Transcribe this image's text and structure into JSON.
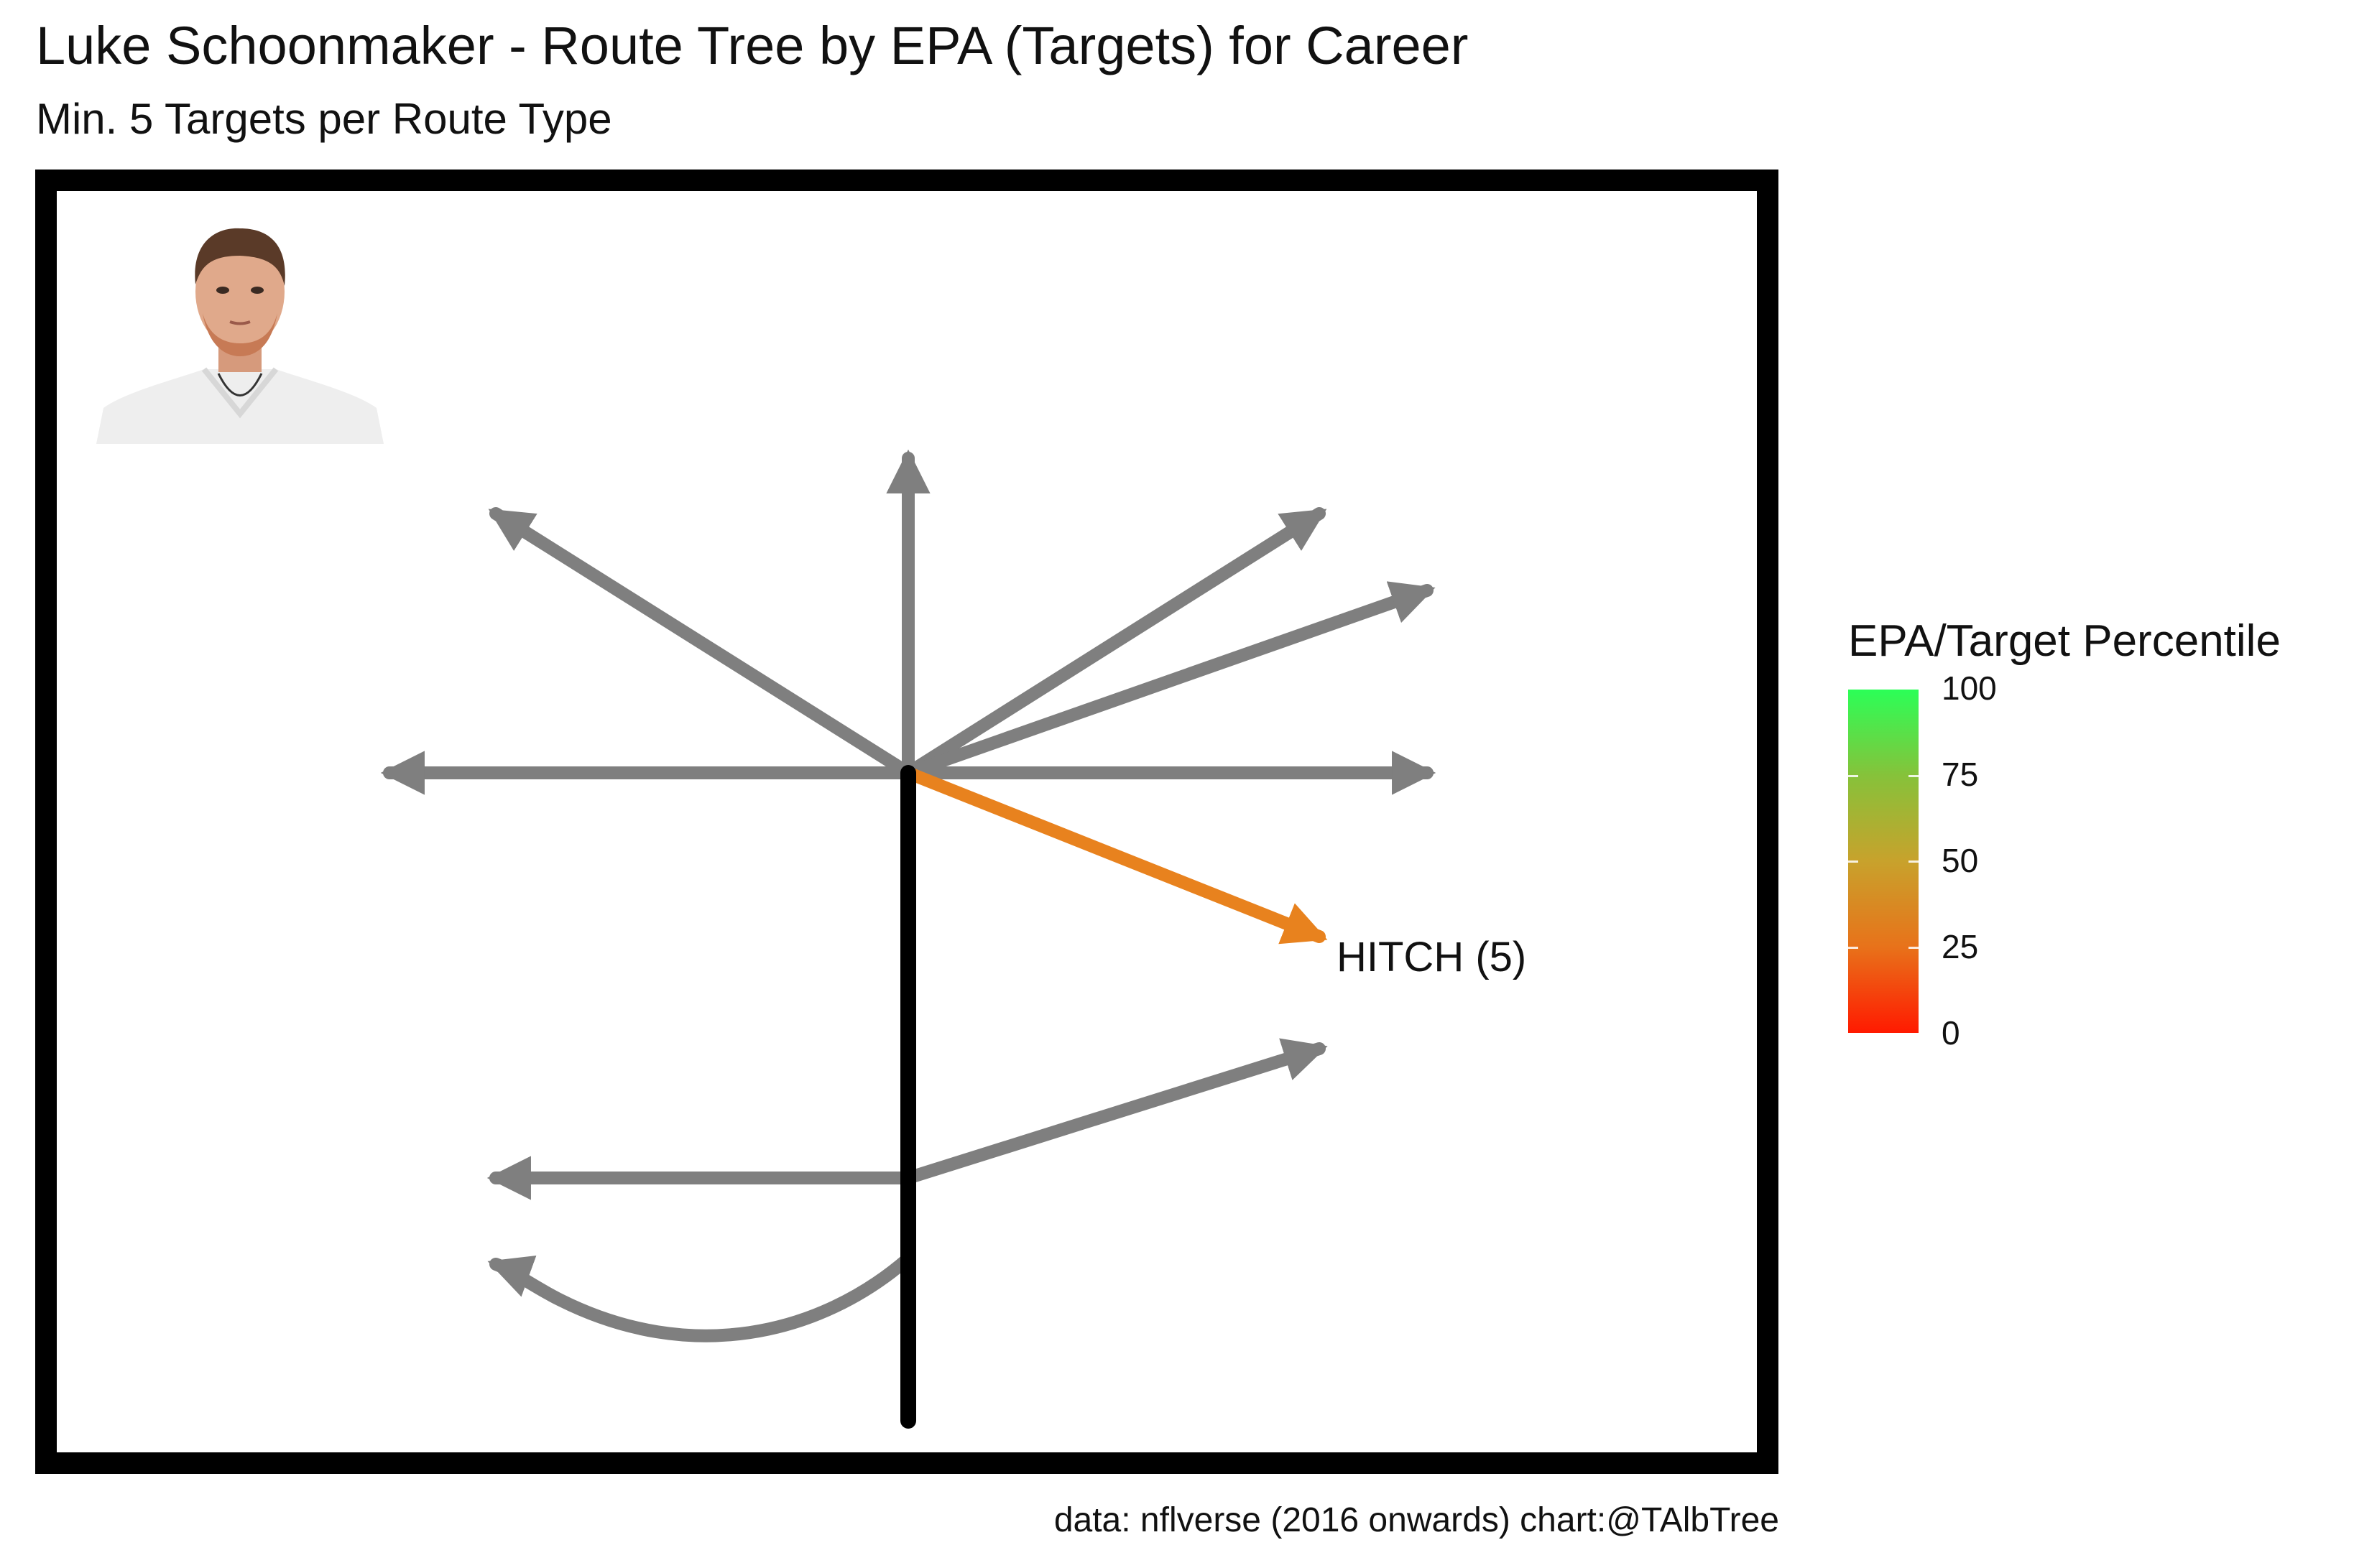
{
  "header": {
    "title": "Luke Schoonmaker - Route Tree by EPA (Targets) for Career",
    "subtitle": "Min. 5 Targets per Route Type"
  },
  "caption": "data: nflverse (2016 onwards)  chart:@TAlbTree",
  "legend": {
    "title": "EPA/Target Percentile",
    "ticks": [
      "100",
      "75",
      "50",
      "25",
      "0"
    ],
    "low_color": "#ff1a00",
    "high_color": "#2bff57"
  },
  "colors": {
    "inactive_route": "#7f7f7f",
    "stem": "#000000",
    "field_border": "#000000"
  },
  "chart_data": {
    "type": "route-tree",
    "routes": [
      {
        "label": "HITCH (5)",
        "targets": 5,
        "color": "#e8821e"
      }
    ]
  }
}
